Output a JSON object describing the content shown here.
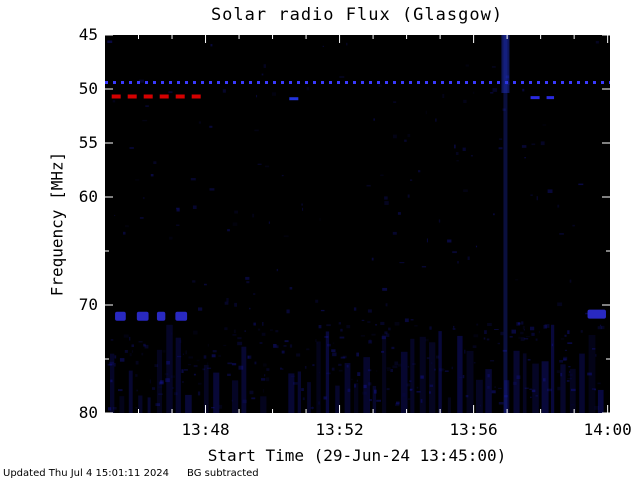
{
  "footer": {
    "updated": "Updated Thu Jul  4 15:01:11 2024",
    "note": "BG subtracted"
  },
  "chart_data": {
    "type": "heatmap",
    "title": "Solar radio Flux (Glasgow)",
    "xlabel": "Start Time (29-Jun-24 13:45:00)",
    "ylabel": "Frequency [MHz]",
    "ylim": [
      45,
      80
    ],
    "x_range_min": [
      0,
      15.07
    ],
    "x_ticks": [
      {
        "label": "13:48",
        "m": 3
      },
      {
        "label": "13:52",
        "m": 7
      },
      {
        "label": "13:56",
        "m": 11
      },
      {
        "label": "14:00",
        "m": 15
      }
    ],
    "x_minor_minutes": [
      1,
      2,
      4,
      5,
      6,
      8,
      9,
      10,
      12,
      13,
      14
    ],
    "y_ticks": [
      {
        "label": "45",
        "f": 45
      },
      {
        "label": "50",
        "f": 50
      },
      {
        "label": "55",
        "f": 55
      },
      {
        "label": "60",
        "f": 60
      },
      {
        "label": "70",
        "f": 70
      },
      {
        "label": "80",
        "f": 80
      }
    ],
    "y_minor_freqs": [
      65,
      75
    ],
    "colors": {
      "background": "#000000",
      "axis_ticks": "#ffffff",
      "labels": "#000000",
      "noise_blue": "#1c1ccd",
      "dotted_line_blue": "#3a3aff",
      "red_emission": "#d40000",
      "blob_blue": "#2d2dd6",
      "streak_blue": "#2233cc"
    },
    "features": [
      {
        "id": "calibration-dotted-line",
        "type": "hdotted",
        "freq": 49.4,
        "t0": 0.0,
        "t1": 15.07,
        "color": "#3a3aff"
      },
      {
        "id": "red-dashed-emission-51MHz",
        "type": "hdashed",
        "freq": 50.7,
        "t0": 0.2,
        "t1": 3.0,
        "color": "#d40000",
        "width": 4
      },
      {
        "id": "blue-dash-51MHz-mid",
        "type": "hdashed",
        "freq": 50.9,
        "t0": 5.5,
        "t1": 5.85,
        "color": "#2233dd",
        "width": 3
      },
      {
        "id": "blue-dashes-51MHz-right",
        "type": "hdashed",
        "freq": 50.8,
        "t0": 12.7,
        "t1": 13.4,
        "color": "#2a2ae0",
        "width": 3
      },
      {
        "id": "blobs-71MHz-left",
        "type": "blobs",
        "freq": 71,
        "color": "#2d2dd6",
        "spans": [
          [
            0.3,
            0.62
          ],
          [
            0.95,
            1.3
          ],
          [
            1.55,
            1.8
          ],
          [
            2.1,
            2.45
          ]
        ]
      },
      {
        "id": "blob-71MHz-right",
        "type": "blobs",
        "freq": 70.8,
        "color": "#2d2dd6",
        "spans": [
          [
            14.4,
            14.95
          ]
        ]
      },
      {
        "id": "vertical-interference-streak",
        "type": "vstreak",
        "m": 11.95,
        "color": "#2233cc"
      }
    ],
    "noise": {
      "seed": 7,
      "speckle_count": 420,
      "band_top_freq": 71.5
    }
  }
}
